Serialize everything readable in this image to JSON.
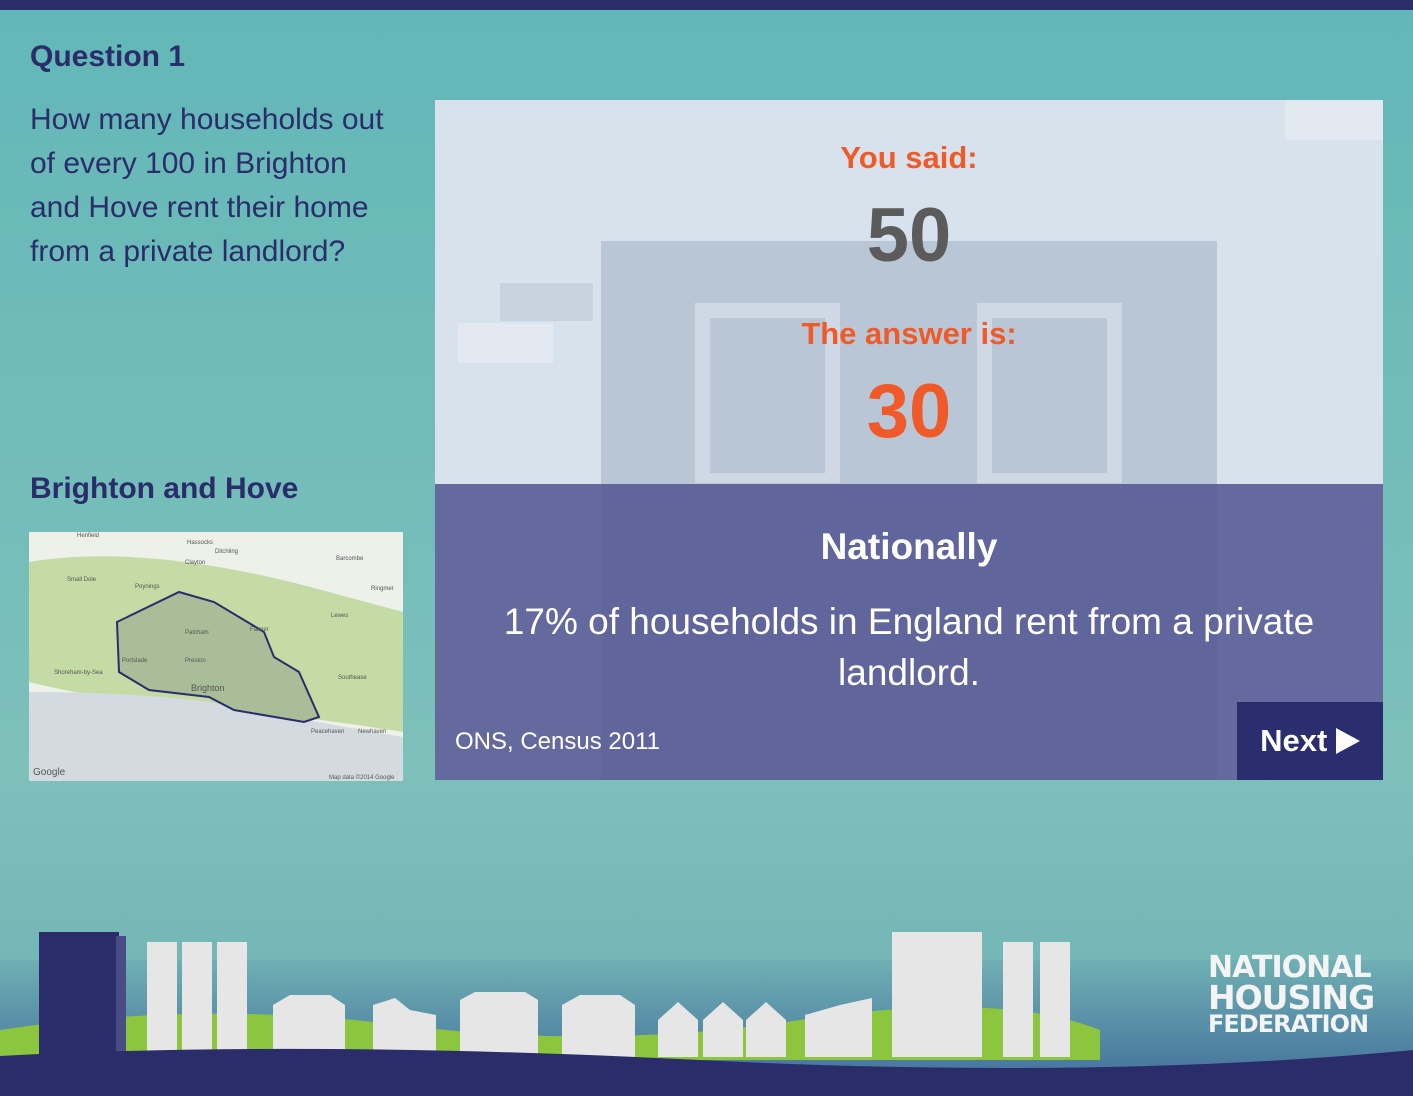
{
  "question": {
    "label": "Question 1",
    "text": "How many households out of every 100 in Brighton and Hove rent their home from a private landlord?"
  },
  "area": {
    "title": "Brighton and Hove",
    "map_labels": [
      "Henfield",
      "Hassocks",
      "Ditchling",
      "Clayton",
      "Barcombe",
      "Small Dole",
      "Poynings",
      "Ringmer",
      "Lewes",
      "Patcham",
      "Falmer",
      "Portslade",
      "Preston",
      "Shoreham-by-Sea",
      "Brighton",
      "Southease",
      "Peacehaven",
      "Newhaven"
    ],
    "map_credit": "Google",
    "map_data": "Map data ©2014 Google"
  },
  "result": {
    "you_said_label": "You said:",
    "you_said": 50,
    "answer_label": "The answer is:",
    "answer": 30,
    "national_title": "Nationally",
    "national_text": "17% of households in England rent from a private landlord.",
    "source": "ONS, Census 2011",
    "next": "Next"
  },
  "logo": {
    "line1": "NATIONAL",
    "line2": "HOUSING",
    "line3": "FEDERATION"
  }
}
